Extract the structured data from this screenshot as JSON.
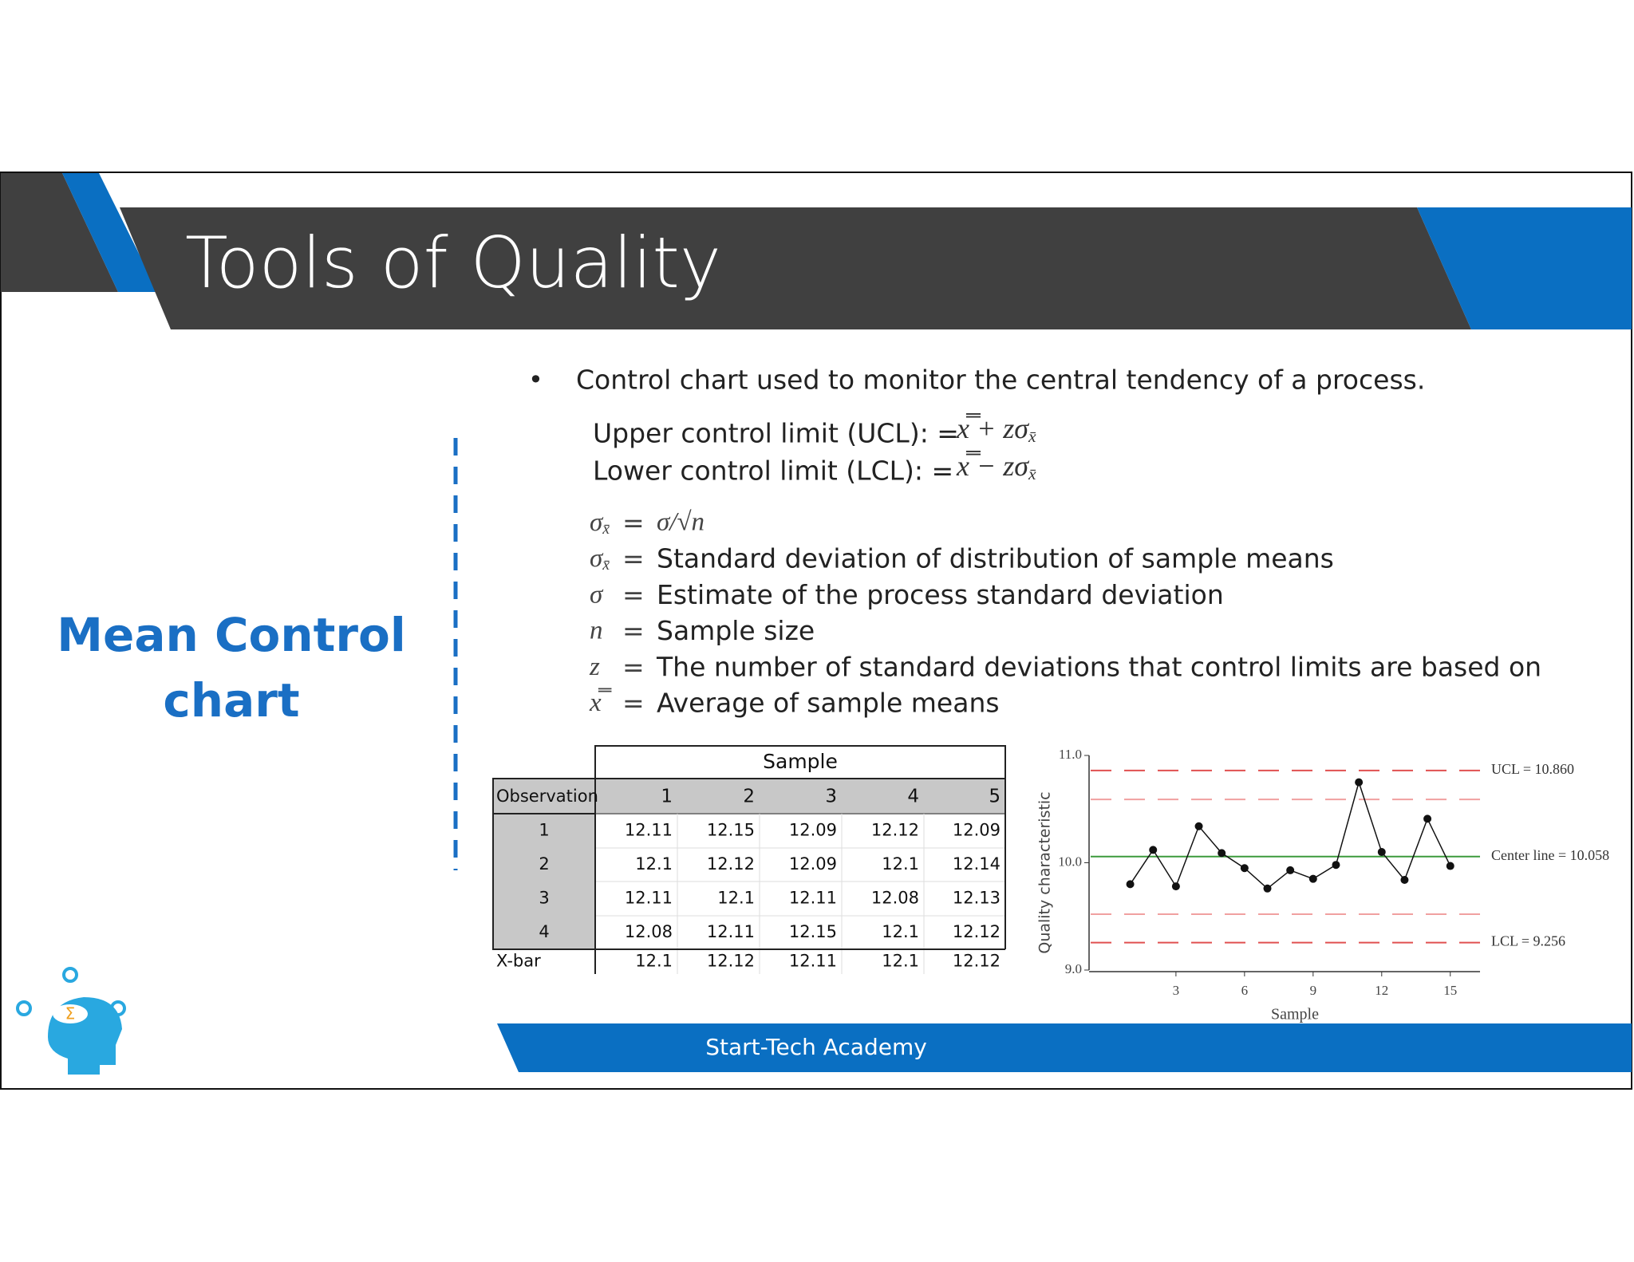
{
  "header": {
    "title": "Tools of Quality"
  },
  "side_title": [
    "Mean Control",
    "chart"
  ],
  "bullet": {
    "marker": "•",
    "text": "Control chart used to monitor the central tendency of a process."
  },
  "limits": [
    {
      "label": "Upper control limit (UCL): =",
      "formula": "x̿ + zσ",
      "sub": "x̄"
    },
    {
      "label": "Lower control limit (LCL): =",
      "formula": "x̿ − zσ",
      "sub": "x̄"
    }
  ],
  "definitions": [
    {
      "symbol": "σ",
      "sub": "x̄",
      "relation": "=",
      "text": "σ/√n"
    },
    {
      "symbol": "σ",
      "sub": "x̄",
      "relation": "=",
      "text": "Standard deviation of distribution of sample means"
    },
    {
      "symbol": "σ",
      "sub": "",
      "relation": "=",
      "text": "Estimate of the process standard deviation"
    },
    {
      "symbol": "n",
      "sub": "",
      "relation": "=",
      "text": "Sample size"
    },
    {
      "symbol": "z",
      "sub": "",
      "relation": "=",
      "text": "The number of standard deviations that control limits are based on"
    },
    {
      "symbol": "x̿",
      "sub": "",
      "relation": "=",
      "text": "Average of sample means"
    }
  ],
  "table": {
    "group_header": "Sample",
    "header": [
      "Observation",
      "1",
      "2",
      "3",
      "4",
      "5"
    ],
    "rows": [
      [
        "1",
        "12.11",
        "12.15",
        "12.09",
        "12.12",
        "12.09"
      ],
      [
        "2",
        "12.1",
        "12.12",
        "12.09",
        "12.1",
        "12.14"
      ],
      [
        "3",
        "12.11",
        "12.1",
        "12.11",
        "12.08",
        "12.13"
      ],
      [
        "4",
        "12.08",
        "12.11",
        "12.15",
        "12.1",
        "12.12"
      ],
      [
        "X-bar",
        "12.1",
        "12.12",
        "12.11",
        "12.1",
        "12.12"
      ]
    ]
  },
  "chart_data": {
    "type": "line",
    "x_label": "Sample",
    "y_label": "Quality characteristic",
    "x": [
      1,
      2,
      3,
      4,
      5,
      6,
      7,
      8,
      9,
      10,
      11,
      12,
      13,
      14,
      15
    ],
    "series": [
      {
        "color": "#111111",
        "values": [
          9.8,
          10.12,
          9.78,
          10.34,
          10.09,
          9.95,
          9.76,
          9.93,
          9.85,
          9.98,
          10.75,
          10.1,
          9.84,
          10.41,
          9.97
        ]
      }
    ],
    "lines": [
      {
        "value": 10.86,
        "label": "UCL = 10.860",
        "color": "#e05050",
        "dashed": true
      },
      {
        "value": 10.59,
        "color": "#f0a0a0",
        "dashed": true
      },
      {
        "value": 10.058,
        "label": "Center line = 10.058",
        "color": "#3c9a3c",
        "dashed": false
      },
      {
        "value": 9.52,
        "color": "#f0a0a0",
        "dashed": true
      },
      {
        "value": 9.256,
        "label": "LCL = 9.256",
        "color": "#e05050",
        "dashed": true
      }
    ],
    "xlim": [
      -0.8,
      16.3
    ],
    "xticks": [
      3,
      6,
      9,
      12,
      15
    ],
    "ylim": [
      9.0,
      11.0
    ],
    "yticks": [
      {
        "value": 9.0,
        "label": "9.0"
      },
      {
        "value": 10.0,
        "label": "10.0"
      },
      {
        "value": 11.0,
        "label": "11.0"
      }
    ]
  },
  "footer": "Start-Tech Academy"
}
